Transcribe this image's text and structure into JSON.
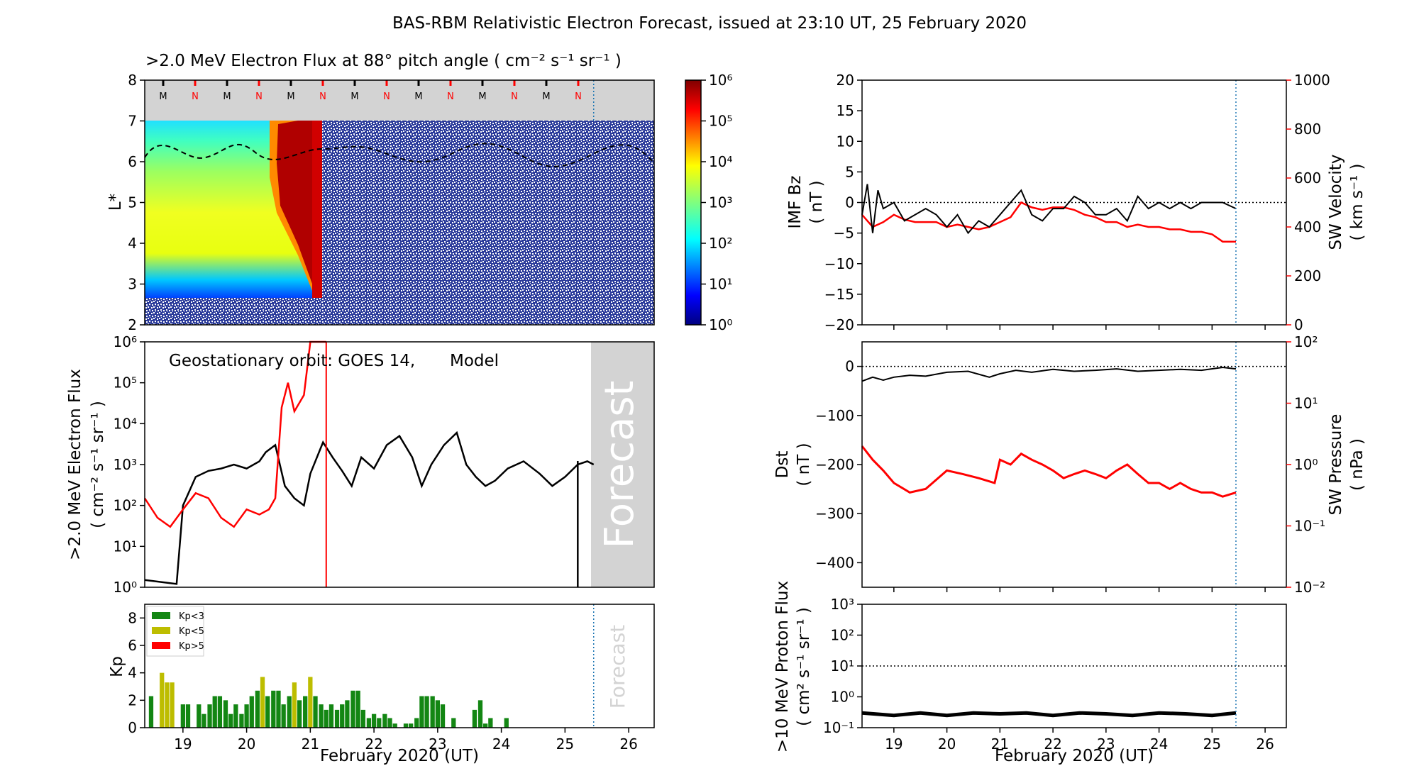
{
  "title": "BAS-RBM Relativistic Electron Forecast, issued at 23:10 UT, 25 February 2020",
  "colors": {
    "observed": "#000000",
    "model": "#ff0000",
    "forecast_bg": "#d3d3d3",
    "kp_low": "#138613",
    "kp_mid": "#bdbd00",
    "kp_high": "#ff0000",
    "forecast_line": "#1f77b4"
  },
  "panels": {
    "flux_map": {
      "title": ">2.0 MeV Electron Flux at 88° pitch angle ( cm⁻² s⁻¹ sr⁻¹ )",
      "ylabel": "L*",
      "yticks": [
        "2",
        "3",
        "4",
        "5",
        "6",
        "7",
        "8"
      ],
      "colorbar_ticks": [
        "10⁰",
        "10¹",
        "10²",
        "10³",
        "10⁴",
        "10⁵",
        "10⁶"
      ],
      "orbit_marks": [
        "M",
        "N",
        "M",
        "N",
        "M",
        "N",
        "M",
        "N",
        "M",
        "N",
        "M",
        "N",
        "M",
        "N"
      ]
    },
    "geo_flux": {
      "annotation": "Geostationary orbit:   GOES 14,",
      "model_label": "Model",
      "ylabel1": ">2.0 MeV Electron Flux",
      "ylabel2": "( cm⁻² s⁻¹ sr⁻¹ )",
      "yticks": [
        "10⁰",
        "10¹",
        "10²",
        "10³",
        "10⁴",
        "10⁵",
        "10⁶"
      ],
      "forecast_label": "Forecast"
    },
    "kp": {
      "ylabel": "Kp",
      "yticks": [
        "0",
        "2",
        "4",
        "6",
        "8"
      ],
      "legend": [
        "Kp<3",
        "Kp<5",
        "Kp>5"
      ],
      "forecast_label": "Forecast",
      "xlabel": "February 2020 (UT)"
    },
    "imf": {
      "ylabel1": "IMF Bz",
      "ylabel2": "( nT )",
      "yticks": [
        "20",
        "15",
        "10",
        "5",
        "0",
        "−5",
        "−10",
        "−15",
        "−20"
      ],
      "ylabel_right1": "SW Velocity",
      "ylabel_right2": "( km s⁻¹ )",
      "yticks_right": [
        "1000",
        "800",
        "600",
        "400",
        "200",
        "0"
      ]
    },
    "dst": {
      "ylabel1": "Dst",
      "ylabel2": "( nT )",
      "yticks": [
        "0",
        "−100",
        "−200",
        "−300",
        "−400"
      ],
      "ylabel_right1": "SW Pressure",
      "ylabel_right2": "( nPa )",
      "yticks_right": [
        "10²",
        "10¹",
        "10⁰",
        "10⁻¹",
        "10⁻²"
      ]
    },
    "proton": {
      "ylabel1": ">10 MeV Proton Flux",
      "ylabel2": "( cm² s⁻¹ sr⁻¹ )",
      "yticks": [
        "10³",
        "10²",
        "10¹",
        "10⁰",
        "10⁻¹"
      ],
      "xlabel": "February 2020 (UT)"
    }
  },
  "xticks": [
    "19",
    "20",
    "21",
    "22",
    "23",
    "24",
    "25",
    "26"
  ],
  "chart_data": [
    {
      "type": "line",
      "title": ">2.0 MeV Electron Flux",
      "x_unit": "day of February 2020",
      "xlim": [
        18.4,
        26.4
      ],
      "yscale": "log",
      "ylim": [
        1,
        1000000
      ],
      "forecast_start": 25.45,
      "series": [
        {
          "name": "GOES 14",
          "color": "#000000",
          "x": [
            18.4,
            18.9,
            19.0,
            19.2,
            19.4,
            19.6,
            19.8,
            20.0,
            20.2,
            20.3,
            20.45,
            20.6,
            20.75,
            20.9,
            21.0,
            21.2,
            21.35,
            21.5,
            21.65,
            21.8,
            22.0,
            22.2,
            22.4,
            22.6,
            22.75,
            22.9,
            23.1,
            23.3,
            23.45,
            23.6,
            23.75,
            23.9,
            24.1,
            24.35,
            24.6,
            24.8,
            25.0,
            25.2,
            25.35,
            25.45
          ],
          "values": [
            1.5,
            1.2,
            100,
            500,
            700,
            800,
            1000,
            800,
            1200,
            2000,
            3000,
            300,
            150,
            100,
            600,
            3500,
            1500,
            700,
            300,
            1500,
            800,
            3000,
            5000,
            1500,
            300,
            1000,
            3000,
            6000,
            1000,
            500,
            300,
            400,
            800,
            1200,
            600,
            300,
            500,
            1000,
            1200,
            1000
          ]
        },
        {
          "name": "Model",
          "color": "#ff0000",
          "x": [
            18.4,
            18.6,
            18.8,
            19.0,
            19.2,
            19.4,
            19.6,
            19.8,
            20.0,
            20.2,
            20.35,
            20.45,
            20.55,
            20.65,
            20.75,
            20.9,
            21.0,
            21.2,
            21.25
          ],
          "values": [
            150,
            50,
            30,
            80,
            200,
            150,
            50,
            30,
            80,
            60,
            80,
            150,
            25000,
            100000,
            20000,
            50000,
            1000000,
            1000000,
            1000000
          ]
        }
      ]
    },
    {
      "type": "bar",
      "title": "Kp",
      "x_unit": "day of February 2020",
      "x": [
        18.5,
        18.58,
        18.67,
        18.75,
        18.83,
        18.92,
        19.0,
        19.08,
        19.17,
        19.25,
        19.33,
        19.42,
        19.5,
        19.58,
        19.67,
        19.75,
        19.83,
        19.92,
        20.0,
        20.08,
        20.17,
        20.25,
        20.33,
        20.42,
        20.5,
        20.58,
        20.67,
        20.75,
        20.83,
        20.92,
        21.0,
        21.08,
        21.17,
        21.25,
        21.33,
        21.42,
        21.5,
        21.58,
        21.67,
        21.75,
        21.83,
        21.92,
        22.0,
        22.08,
        22.17,
        22.25,
        22.33,
        22.42,
        22.5,
        22.58,
        22.67,
        22.75,
        22.83,
        22.92,
        23.0,
        23.08,
        23.17,
        23.25,
        23.33,
        23.42,
        23.5,
        23.58,
        23.67,
        23.75,
        23.83,
        23.92,
        24.0,
        24.08,
        24.17,
        24.25,
        24.33,
        24.42,
        24.5,
        24.58,
        24.67,
        24.75,
        24.83,
        24.92,
        25.0,
        25.08
      ],
      "values": [
        2.3,
        0,
        4.0,
        3.3,
        3.3,
        0,
        1.7,
        1.7,
        0,
        1.7,
        1.0,
        1.7,
        2.3,
        2.3,
        2.0,
        1.0,
        1.7,
        1.0,
        1.7,
        2.3,
        2.7,
        3.7,
        2.3,
        2.7,
        2.7,
        1.7,
        2.3,
        3.3,
        2.0,
        2.3,
        3.7,
        2.3,
        1.7,
        1.3,
        1.7,
        1.3,
        1.7,
        2.0,
        2.7,
        2.7,
        1.3,
        0.7,
        1.0,
        0.7,
        1.0,
        0.7,
        0.3,
        0,
        0.3,
        0.3,
        0.7,
        2.3,
        2.3,
        2.3,
        2.0,
        1.7,
        0,
        0.7,
        0,
        0,
        0,
        1.3,
        2.0,
        0.3,
        0.7,
        0,
        0,
        0.7,
        0,
        0,
        0,
        0,
        0,
        0,
        0,
        0,
        0,
        0,
        0,
        0
      ],
      "ylim": [
        0,
        9
      ]
    },
    {
      "type": "line",
      "title": "IMF Bz / SW Velocity",
      "xlim": [
        18.4,
        26.4
      ],
      "ylim": [
        -20,
        20
      ],
      "ylim_right": [
        0,
        1000
      ],
      "series": [
        {
          "name": "IMF Bz",
          "color": "#000000",
          "x": [
            18.4,
            18.5,
            18.6,
            18.7,
            18.8,
            19.0,
            19.2,
            19.4,
            19.6,
            19.8,
            20.0,
            20.2,
            20.4,
            20.6,
            20.8,
            21.0,
            21.2,
            21.4,
            21.6,
            21.8,
            22.0,
            22.2,
            22.4,
            22.6,
            22.8,
            23.0,
            23.2,
            23.4,
            23.6,
            23.8,
            24.0,
            24.2,
            24.4,
            24.6,
            24.8,
            25.0,
            25.2,
            25.45
          ],
          "values": [
            -2,
            3,
            -5,
            2,
            -1,
            0,
            -3,
            -2,
            -1,
            -2,
            -4,
            -2,
            -5,
            -3,
            -4,
            -2,
            0,
            2,
            -2,
            -3,
            -1,
            -1,
            1,
            0,
            -2,
            -2,
            -1,
            -3,
            1,
            -1,
            0,
            -1,
            0,
            -1,
            0,
            0,
            0,
            -1
          ]
        },
        {
          "name": "SW Velocity",
          "color": "#ff0000",
          "axis": "right",
          "x": [
            18.4,
            18.6,
            18.8,
            19.0,
            19.2,
            19.4,
            19.6,
            19.8,
            20.0,
            20.2,
            20.4,
            20.6,
            20.8,
            21.0,
            21.2,
            21.4,
            21.6,
            21.8,
            22.0,
            22.2,
            22.4,
            22.6,
            22.8,
            23.0,
            23.2,
            23.4,
            23.6,
            23.8,
            24.0,
            24.2,
            24.4,
            24.6,
            24.8,
            25.0,
            25.2,
            25.45
          ],
          "values": [
            450,
            400,
            420,
            450,
            430,
            420,
            420,
            420,
            400,
            410,
            400,
            390,
            400,
            420,
            440,
            500,
            480,
            470,
            480,
            480,
            470,
            450,
            440,
            420,
            420,
            400,
            410,
            400,
            400,
            390,
            390,
            380,
            380,
            370,
            340,
            340
          ]
        }
      ]
    },
    {
      "type": "line",
      "title": "Dst / SW Pressure",
      "xlim": [
        18.4,
        26.4
      ],
      "ylim": [
        -450,
        50
      ],
      "yscale_right": "log",
      "ylim_right": [
        0.01,
        100
      ],
      "series": [
        {
          "name": "Dst",
          "color": "#000000",
          "x": [
            18.4,
            18.6,
            18.8,
            19.0,
            19.3,
            19.6,
            20.0,
            20.4,
            20.8,
            21.0,
            21.3,
            21.6,
            22.0,
            22.4,
            22.8,
            23.2,
            23.6,
            24.0,
            24.4,
            24.8,
            25.2,
            25.45
          ],
          "values": [
            -30,
            -22,
            -28,
            -22,
            -18,
            -20,
            -12,
            -10,
            -22,
            -15,
            -8,
            -12,
            -6,
            -10,
            -8,
            -5,
            -10,
            -8,
            -6,
            -8,
            -2,
            -5
          ]
        },
        {
          "name": "SW Pressure",
          "color": "#ff0000",
          "axis": "right",
          "x": [
            18.4,
            18.6,
            18.8,
            19.0,
            19.3,
            19.6,
            20.0,
            20.3,
            20.6,
            20.9,
            21.0,
            21.2,
            21.4,
            21.6,
            21.8,
            22.0,
            22.2,
            22.4,
            22.6,
            22.8,
            23.0,
            23.2,
            23.4,
            23.6,
            23.8,
            24.0,
            24.2,
            24.4,
            24.6,
            24.8,
            25.0,
            25.2,
            25.45
          ],
          "values": [
            2.0,
            1.2,
            0.8,
            0.5,
            0.35,
            0.4,
            0.8,
            0.7,
            0.6,
            0.5,
            1.2,
            1.0,
            1.5,
            1.2,
            1.0,
            0.8,
            0.6,
            0.7,
            0.8,
            0.7,
            0.6,
            0.8,
            1.0,
            0.7,
            0.5,
            0.5,
            0.4,
            0.5,
            0.4,
            0.35,
            0.35,
            0.3,
            0.35
          ]
        }
      ]
    },
    {
      "type": "line",
      "title": ">10 MeV Proton Flux",
      "xlim": [
        18.4,
        26.4
      ],
      "yscale": "log",
      "ylim": [
        0.1,
        1000
      ],
      "threshold": 10,
      "series": [
        {
          "name": ">10 MeV Proton Flux",
          "color": "#000000",
          "x": [
            18.4,
            19.0,
            19.5,
            20.0,
            20.5,
            21.0,
            21.5,
            22.0,
            22.5,
            23.0,
            23.5,
            24.0,
            24.5,
            25.0,
            25.45
          ],
          "values": [
            0.3,
            0.25,
            0.3,
            0.25,
            0.3,
            0.28,
            0.3,
            0.25,
            0.3,
            0.28,
            0.25,
            0.3,
            0.28,
            0.25,
            0.3
          ]
        }
      ]
    }
  ]
}
